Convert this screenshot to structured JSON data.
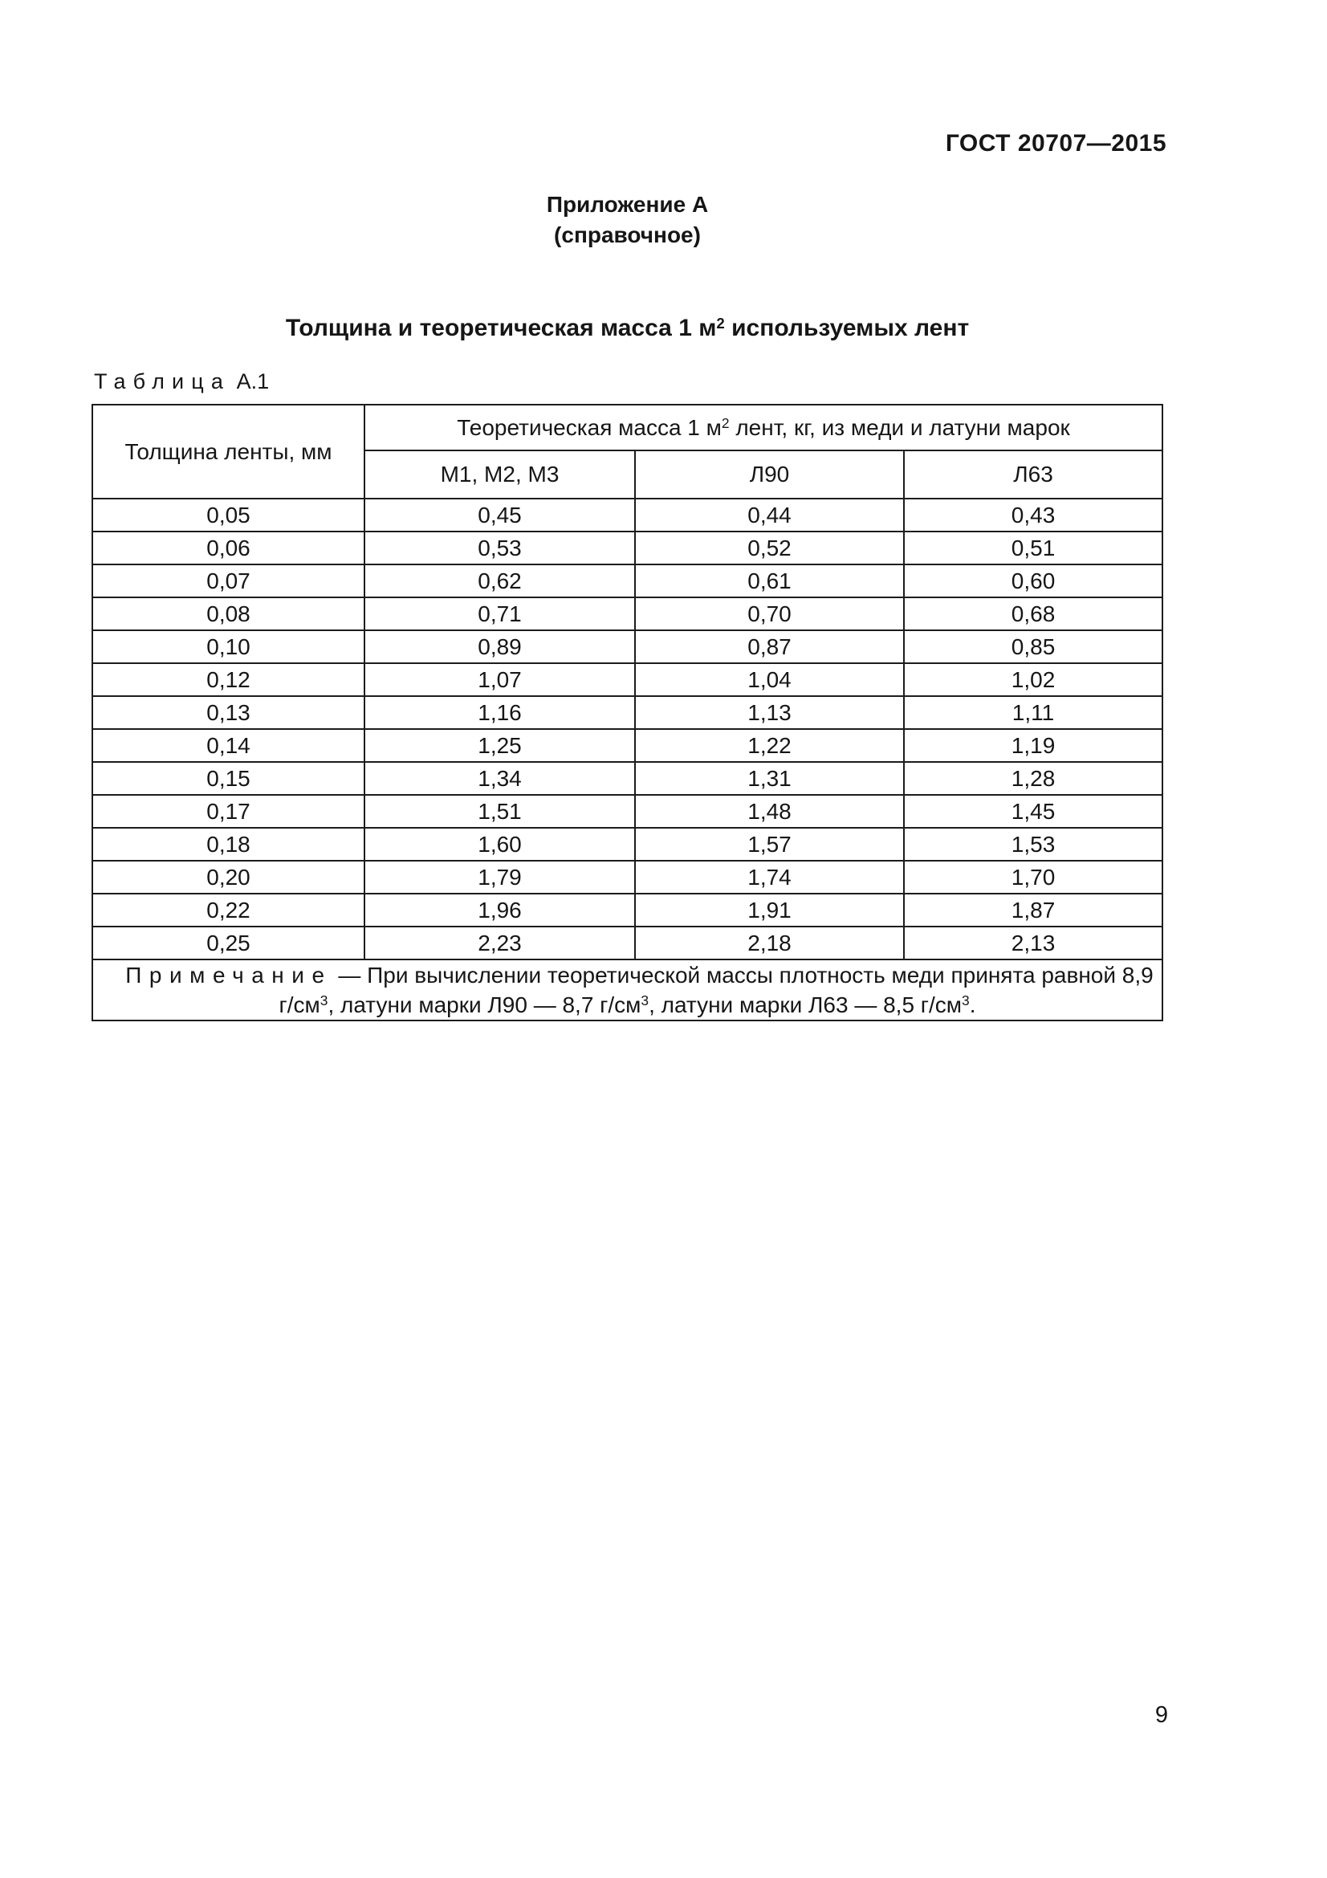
{
  "page": {
    "doc_ref": "ГОСТ 20707—2015",
    "page_number": "9"
  },
  "appendix": {
    "title": "Приложение А",
    "subtitle": "(справочное)"
  },
  "section_title": {
    "segments": [
      {
        "t": "Толщина и теоретическая масса 1 м"
      },
      {
        "sup": "2"
      },
      {
        "t": " используемых лент"
      }
    ]
  },
  "table": {
    "caption_word": "Таблица",
    "caption_ref": "А.1",
    "col1_header": "Толщина ленты, мм",
    "span_header": {
      "segments": [
        {
          "t": "Теоретическая масса 1 м"
        },
        {
          "sup": "2"
        },
        {
          "t": " лент, кг, из меди и латуни марок"
        }
      ]
    },
    "sub_headers": [
      "М1, М2, М3",
      "Л90",
      "Л63"
    ],
    "rows": [
      [
        "0,05",
        "0,45",
        "0,44",
        "0,43"
      ],
      [
        "0,06",
        "0,53",
        "0,52",
        "0,51"
      ],
      [
        "0,07",
        "0,62",
        "0,61",
        "0,60"
      ],
      [
        "0,08",
        "0,71",
        "0,70",
        "0,68"
      ],
      [
        "0,10",
        "0,89",
        "0,87",
        "0,85"
      ],
      [
        "0,12",
        "1,07",
        "1,04",
        "1,02"
      ],
      [
        "0,13",
        "1,16",
        "1,13",
        "1,11"
      ],
      [
        "0,14",
        "1,25",
        "1,22",
        "1,19"
      ],
      [
        "0,15",
        "1,34",
        "1,31",
        "1,28"
      ],
      [
        "0,17",
        "1,51",
        "1,48",
        "1,45"
      ],
      [
        "0,18",
        "1,60",
        "1,57",
        "1,53"
      ],
      [
        "0,20",
        "1,79",
        "1,74",
        "1,70"
      ],
      [
        "0,22",
        "1,96",
        "1,91",
        "1,87"
      ],
      [
        "0,25",
        "2,23",
        "2,18",
        "2,13"
      ]
    ],
    "note": {
      "label": "Примечание",
      "segments": [
        {
          "t": " — При вычислении теоретической массы плотность меди принята равной 8,9 г/см"
        },
        {
          "sup": "3"
        },
        {
          "t": ", латуни марки Л90 — 8,7 г/см"
        },
        {
          "sup": "3"
        },
        {
          "t": ", латуни марки Л63 — 8,5 г/см"
        },
        {
          "sup": "3"
        },
        {
          "t": "."
        }
      ]
    }
  }
}
